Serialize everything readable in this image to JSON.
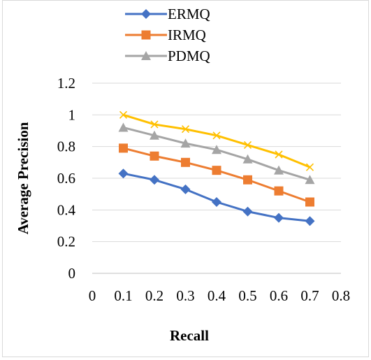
{
  "chart_data": {
    "type": "line",
    "title": "",
    "xlabel": "Recall",
    "ylabel": "Average Precision",
    "xlim": [
      0,
      0.8
    ],
    "ylim": [
      0,
      1.2
    ],
    "x_ticks": [
      "0",
      "0.1",
      "0.2",
      "0.3",
      "0.4",
      "0.5",
      "0.6",
      "0.7",
      "0.8"
    ],
    "y_ticks": [
      "0",
      "0.2",
      "0.4",
      "0.6",
      "0.8",
      "1",
      "1.2"
    ],
    "grid": "horizontal",
    "legend_position": "top",
    "x": [
      0.1,
      0.2,
      0.3,
      0.4,
      0.5,
      0.6,
      0.7
    ],
    "series": [
      {
        "name": "ERMQ",
        "color": "#4472c4",
        "marker": "diamond",
        "values": [
          0.63,
          0.59,
          0.53,
          0.45,
          0.39,
          0.35,
          0.33
        ],
        "in_legend": true
      },
      {
        "name": "IRMQ",
        "color": "#ed7d31",
        "marker": "square",
        "values": [
          0.79,
          0.74,
          0.7,
          0.65,
          0.59,
          0.52,
          0.45
        ],
        "in_legend": true
      },
      {
        "name": "PDMQ",
        "color": "#a5a5a5",
        "marker": "triangle",
        "values": [
          0.92,
          0.87,
          0.82,
          0.78,
          0.72,
          0.65,
          0.59
        ],
        "in_legend": true
      },
      {
        "color": "#ffc000",
        "marker": "x",
        "values": [
          1.0,
          0.94,
          0.91,
          0.87,
          0.81,
          0.75,
          0.67
        ],
        "in_legend": false
      }
    ]
  }
}
